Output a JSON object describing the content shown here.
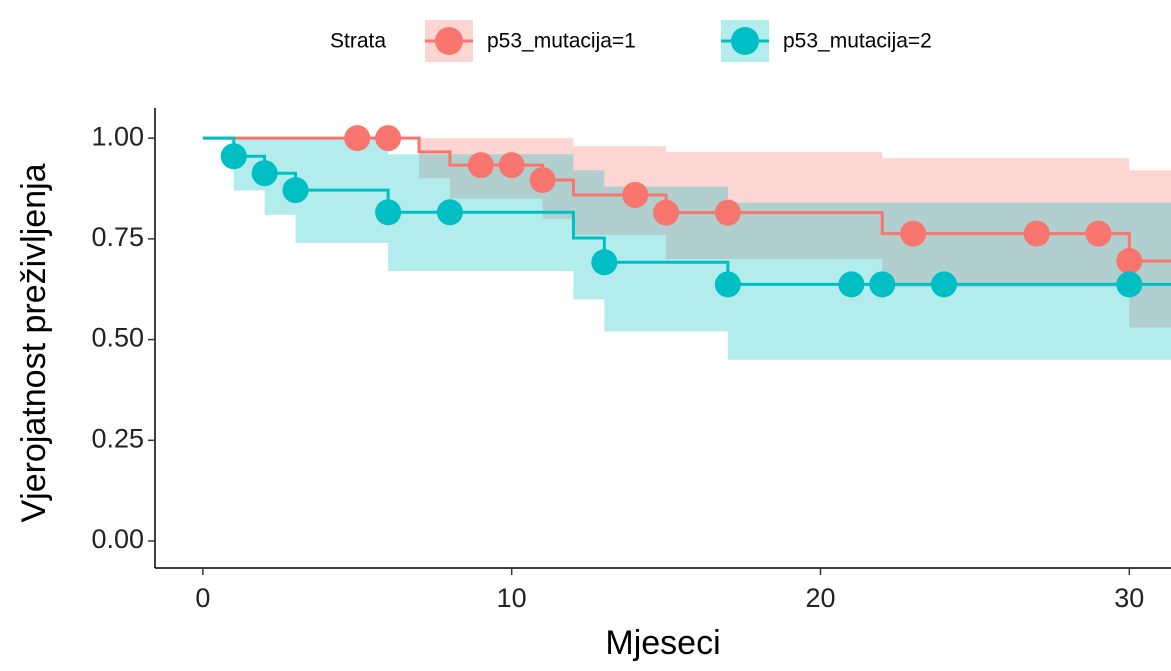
{
  "chart_data": {
    "type": "survival",
    "x_label": "Mjeseci",
    "y_label": "Vjerojatnost preživljenja",
    "legend_title": "Strata",
    "legend_position": "top",
    "xlim": [
      -1.55,
      31.35
    ],
    "ylim": [
      -0.067,
      1.05
    ],
    "xticks": [
      0,
      10,
      20,
      30
    ],
    "yticks": [
      {
        "value": 0,
        "label": "0.00"
      },
      {
        "value": 0.25,
        "label": "0.25"
      },
      {
        "value": 0.5,
        "label": "0.50"
      },
      {
        "value": 0.75,
        "label": "0.75"
      },
      {
        "value": 1,
        "label": "1.00"
      }
    ],
    "series": [
      {
        "name": "p53_mutacija=1",
        "color": "#F8766D",
        "x": [
          0,
          7,
          8,
          11,
          12,
          15,
          22,
          30
        ],
        "values": [
          1,
          0.966,
          0.933,
          0.896,
          0.859,
          0.815,
          0.763,
          0.695
        ],
        "upper": [
          1,
          1,
          1,
          1,
          0.98,
          0.966,
          0.95,
          0.92
        ],
        "lower": [
          1,
          0.9,
          0.85,
          0.8,
          0.76,
          0.7,
          0.63,
          0.53
        ],
        "censor_x": [
          5,
          6,
          9,
          10,
          11,
          14,
          15,
          17,
          23,
          27,
          29,
          30
        ],
        "censor_y": [
          1,
          1,
          0.933,
          0.933,
          0.896,
          0.859,
          0.815,
          0.815,
          0.763,
          0.763,
          0.763,
          0.695
        ]
      },
      {
        "name": "p53_mutacija=2",
        "color": "#00BFC4",
        "x": [
          0,
          1,
          2,
          3,
          6,
          12,
          13,
          17
        ],
        "values": [
          1,
          0.955,
          0.913,
          0.871,
          0.816,
          0.752,
          0.692,
          0.637
        ],
        "upper": [
          1,
          1,
          1,
          1,
          0.96,
          0.92,
          0.88,
          0.84
        ],
        "lower": [
          1,
          0.87,
          0.81,
          0.74,
          0.67,
          0.6,
          0.52,
          0.45
        ],
        "censor_x": [
          1,
          2,
          3,
          6,
          8,
          13,
          17,
          21,
          22,
          24,
          30
        ],
        "censor_y": [
          0.955,
          0.913,
          0.871,
          0.816,
          0.816,
          0.692,
          0.637,
          0.637,
          0.637,
          0.637,
          0.637
        ]
      }
    ]
  }
}
